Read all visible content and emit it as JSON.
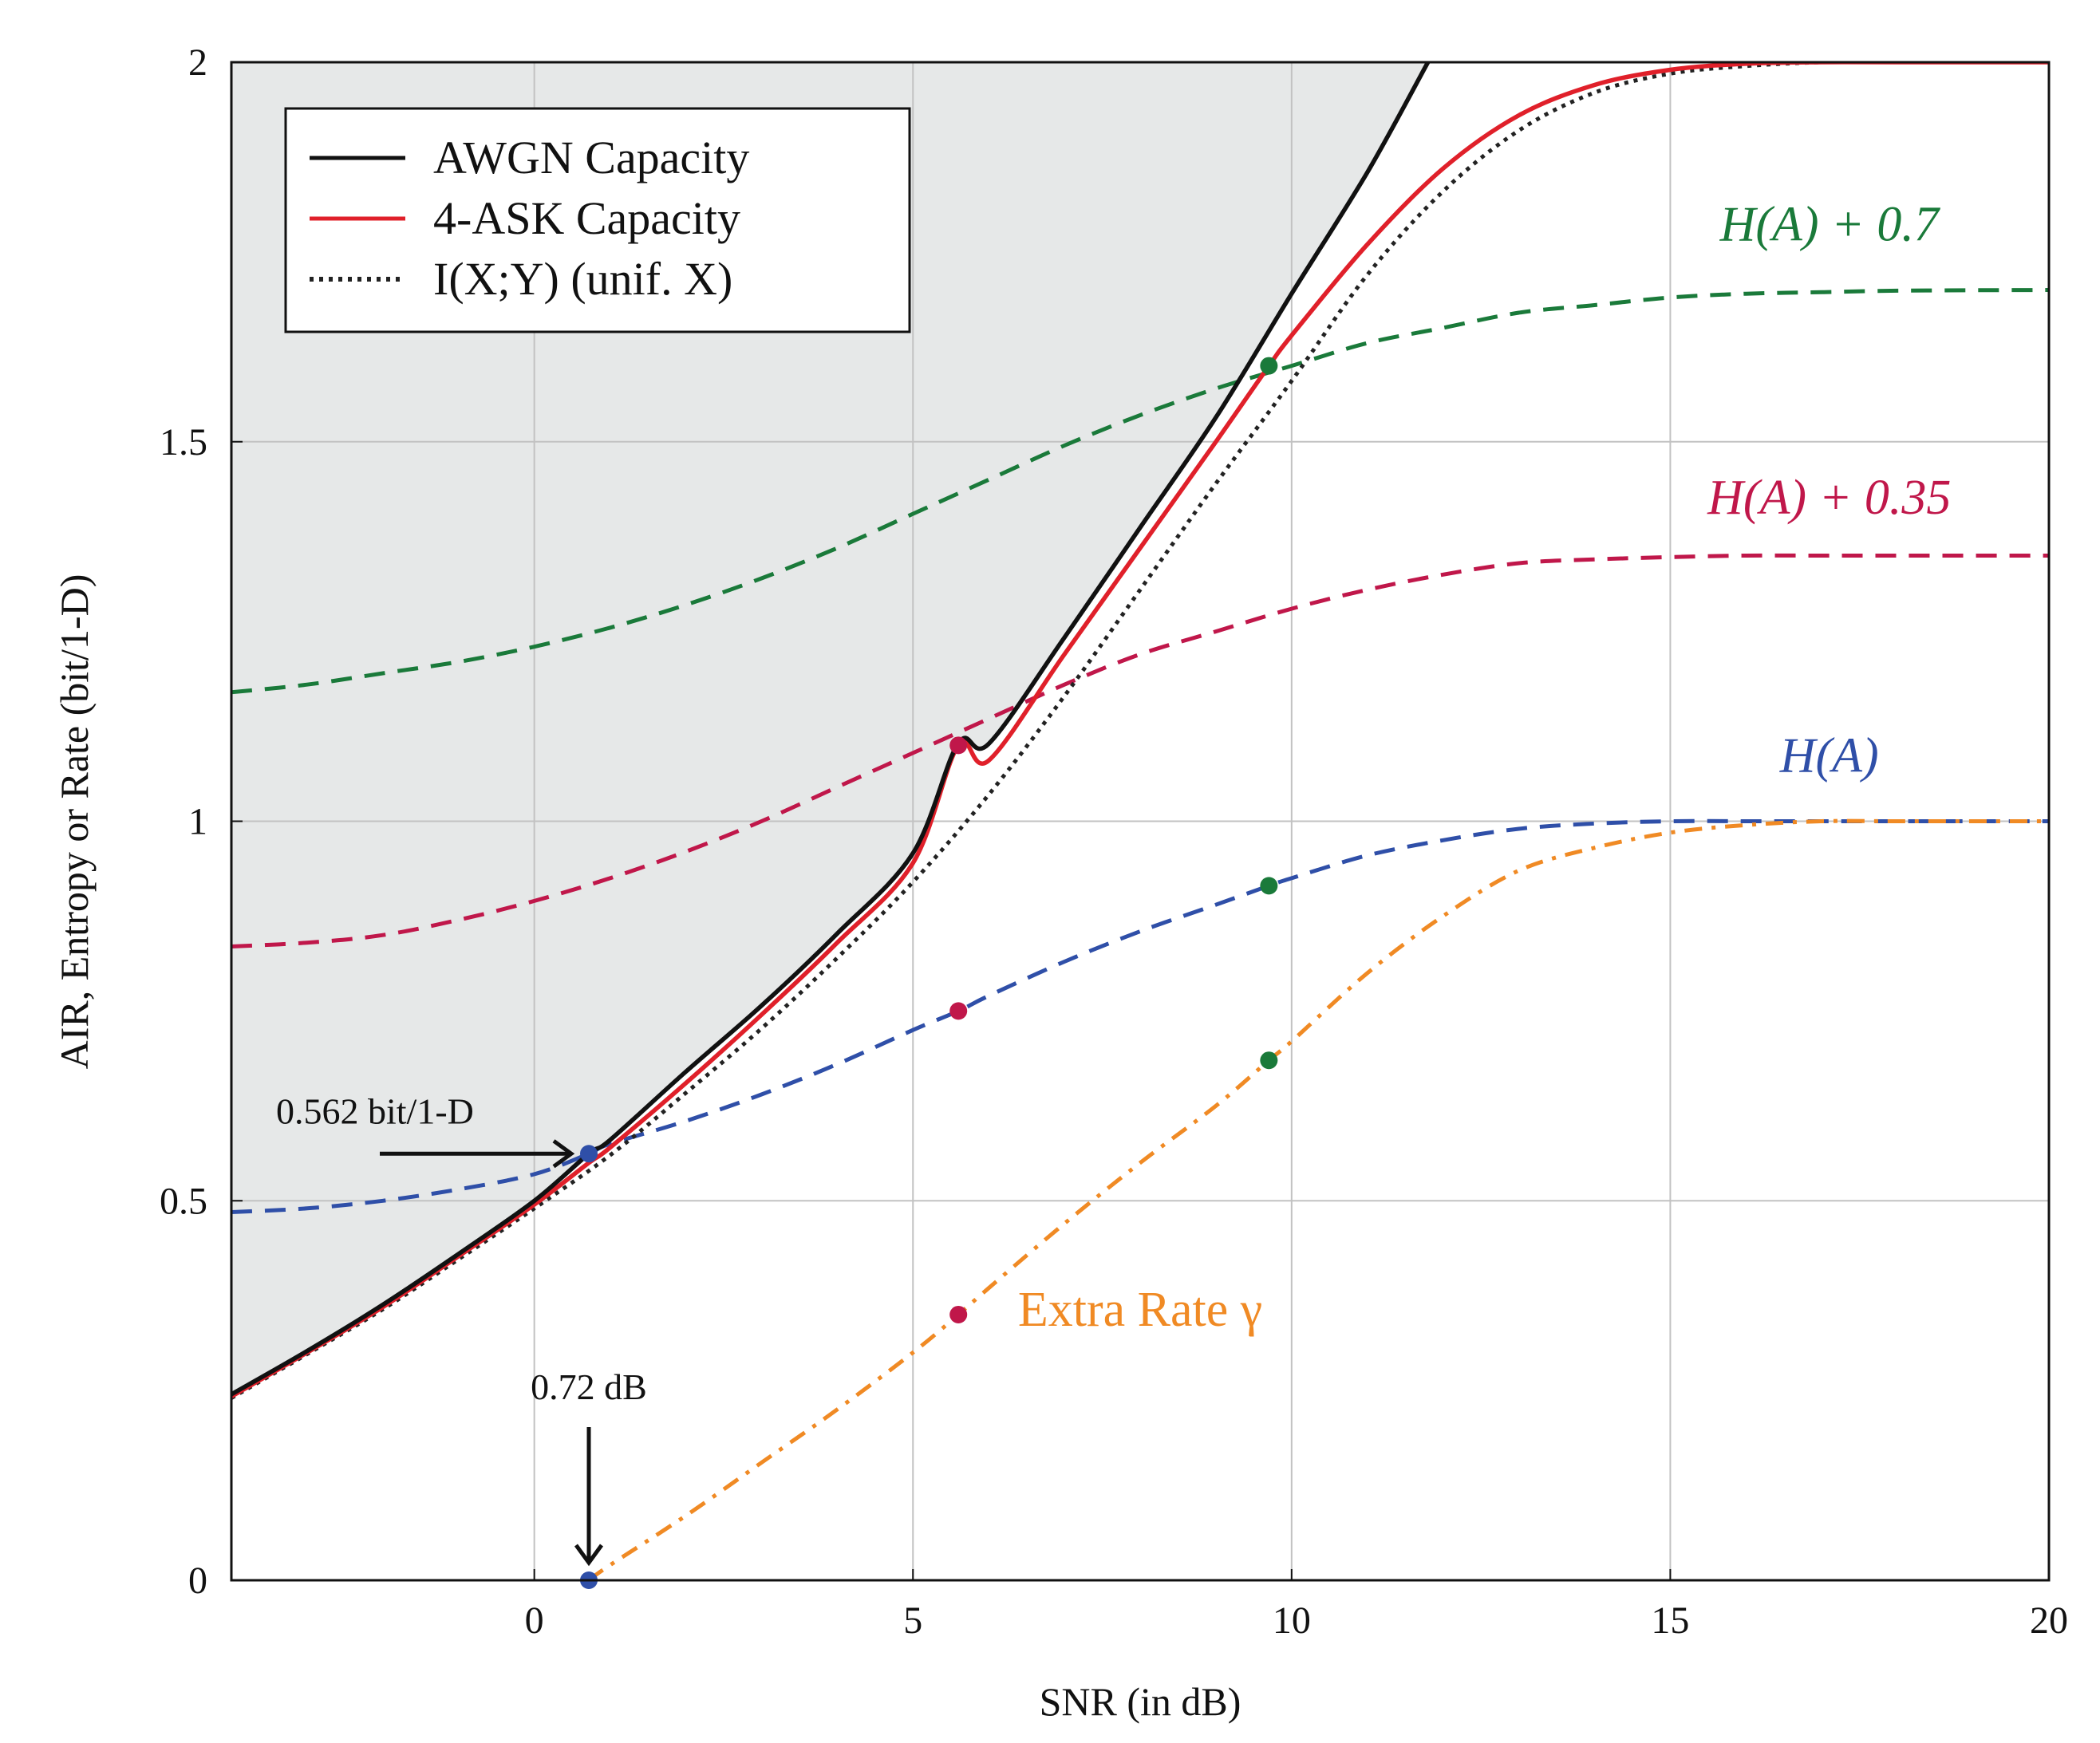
{
  "chart_data": {
    "type": "line",
    "xlabel": "SNR (in dB)",
    "ylabel": "AIR, Entropy or Rate (bit/1-D)",
    "xlim": [
      -4,
      20
    ],
    "ylim": [
      0,
      2
    ],
    "xticks": [
      0,
      5,
      10,
      15,
      20
    ],
    "yticks": [
      0,
      0.5,
      1,
      1.5,
      2
    ],
    "xtick_labels": [
      "0",
      "5",
      "10",
      "15",
      "20"
    ],
    "ytick_labels": [
      "0",
      "0.5",
      "1",
      "1.5",
      "2"
    ],
    "grid": true,
    "legend_position": "top-left",
    "shaded_region": "area above AWGN capacity (unachievable)",
    "series": [
      {
        "name": "AWGN Capacity",
        "color": "#111111",
        "style": "solid",
        "x": [
          -4,
          -3,
          -2,
          -1,
          0,
          0.72,
          1,
          2,
          3,
          4,
          5,
          5.6,
          6,
          7,
          8,
          9,
          10,
          11,
          11.8
        ],
        "y": [
          0.245,
          0.302,
          0.363,
          0.43,
          0.5,
          0.562,
          0.58,
          0.67,
          0.757,
          0.852,
          0.958,
          1.103,
          1.102,
          1.242,
          1.387,
          1.532,
          1.695,
          1.855,
          2.0
        ]
      },
      {
        "name": "4-ASK Capacity",
        "color": "#e0202a",
        "style": "solid",
        "x": [
          -4,
          -3,
          -2,
          -1,
          0,
          0.72,
          1,
          2,
          3,
          4,
          5,
          5.6,
          6,
          7,
          8,
          9,
          9.7,
          10,
          11,
          12,
          13,
          14,
          15,
          16,
          17,
          18,
          20
        ],
        "y": [
          0.242,
          0.3,
          0.36,
          0.427,
          0.495,
          0.55,
          0.57,
          0.655,
          0.745,
          0.84,
          0.945,
          1.1,
          1.08,
          1.22,
          1.36,
          1.5,
          1.6,
          1.64,
          1.76,
          1.86,
          1.93,
          1.97,
          1.99,
          1.998,
          2.0,
          2.0,
          2.0
        ]
      },
      {
        "name": "I(X;Y) (unif. X)",
        "color": "#222222",
        "style": "dotted",
        "x": [
          -4,
          -3,
          -2,
          -1,
          0,
          1,
          2,
          3,
          4,
          5,
          6,
          7,
          8,
          9,
          10,
          11,
          12,
          13,
          14,
          15,
          16,
          17,
          18,
          20
        ],
        "y": [
          0.24,
          0.298,
          0.357,
          0.423,
          0.49,
          0.56,
          0.642,
          0.727,
          0.82,
          0.92,
          1.035,
          1.165,
          1.305,
          1.445,
          1.58,
          1.72,
          1.83,
          1.91,
          1.96,
          1.985,
          1.995,
          2.0,
          2.0,
          2.0
        ]
      },
      {
        "name": "H(A) + 0.7",
        "color": "#1a7a3a",
        "style": "dashed",
        "label": "H(A) + 0.7",
        "x": [
          -4,
          -3,
          -2,
          -1,
          0,
          1,
          2,
          3,
          4,
          5,
          6,
          7,
          8,
          9,
          10,
          11,
          12,
          13,
          14,
          15,
          16,
          17,
          18,
          20
        ],
        "y": [
          1.17,
          1.18,
          1.195,
          1.21,
          1.23,
          1.255,
          1.285,
          1.32,
          1.36,
          1.405,
          1.45,
          1.495,
          1.535,
          1.57,
          1.6,
          1.63,
          1.65,
          1.67,
          1.68,
          1.69,
          1.695,
          1.697,
          1.699,
          1.7
        ]
      },
      {
        "name": "H(A) + 0.35",
        "color": "#c0174a",
        "style": "dashed",
        "label": "H(A) + 0.35",
        "x": [
          -4,
          -3,
          -2,
          -1,
          0,
          1,
          2,
          3,
          4,
          5,
          6,
          7,
          8,
          9,
          10,
          11,
          12,
          13,
          14,
          15,
          16,
          17,
          18,
          20
        ],
        "y": [
          0.835,
          0.84,
          0.85,
          0.87,
          0.895,
          0.925,
          0.96,
          1.0,
          1.045,
          1.09,
          1.135,
          1.18,
          1.22,
          1.25,
          1.28,
          1.305,
          1.325,
          1.34,
          1.345,
          1.348,
          1.35,
          1.35,
          1.35,
          1.35
        ]
      },
      {
        "name": "H(A)",
        "color": "#2f4fa8",
        "style": "dashed",
        "label": "H(A)",
        "x": [
          -4,
          -3,
          -2,
          -1,
          0,
          0.72,
          1,
          2,
          3,
          4,
          5,
          5.6,
          6,
          7,
          8,
          9,
          9.7,
          10,
          11,
          12,
          13,
          14,
          15,
          16,
          17,
          18,
          20
        ],
        "y": [
          0.485,
          0.49,
          0.5,
          0.515,
          0.535,
          0.562,
          0.575,
          0.605,
          0.64,
          0.68,
          0.725,
          0.75,
          0.77,
          0.815,
          0.855,
          0.89,
          0.915,
          0.925,
          0.955,
          0.975,
          0.99,
          0.997,
          1.0,
          1.0,
          1.0,
          1.0,
          1.0
        ]
      },
      {
        "name": "Extra Rate γ",
        "color": "#f08a24",
        "style": "dashdot",
        "label": "Extra Rate γ",
        "x": [
          0.72,
          1,
          2,
          3,
          4,
          5,
          5.6,
          6,
          7,
          8,
          9,
          9.7,
          10,
          11,
          12,
          13,
          14,
          15,
          16,
          17,
          18,
          20
        ],
        "y": [
          0.0,
          0.02,
          0.085,
          0.155,
          0.225,
          0.3,
          0.35,
          0.385,
          0.47,
          0.55,
          0.625,
          0.685,
          0.71,
          0.8,
          0.875,
          0.935,
          0.965,
          0.985,
          0.995,
          1.0,
          1.0,
          1.0
        ]
      }
    ],
    "markers": [
      {
        "x": 0.72,
        "y": 0.562,
        "color": "#2f4fa8"
      },
      {
        "x": 0.72,
        "y": 0.0,
        "color": "#2f4fa8"
      },
      {
        "x": 5.6,
        "y": 1.1,
        "color": "#c0174a"
      },
      {
        "x": 5.6,
        "y": 0.75,
        "color": "#c0174a"
      },
      {
        "x": 5.6,
        "y": 0.35,
        "color": "#c0174a"
      },
      {
        "x": 9.7,
        "y": 1.6,
        "color": "#1a7a3a"
      },
      {
        "x": 9.7,
        "y": 0.915,
        "color": "#1a7a3a"
      },
      {
        "x": 9.7,
        "y": 0.685,
        "color": "#1a7a3a"
      }
    ],
    "annotations": [
      {
        "text": "0.562 bit/1-D",
        "x": 0.72,
        "y": 0.562
      },
      {
        "text": "0.72 dB",
        "x": 0.72,
        "y": 0.0
      }
    ]
  }
}
